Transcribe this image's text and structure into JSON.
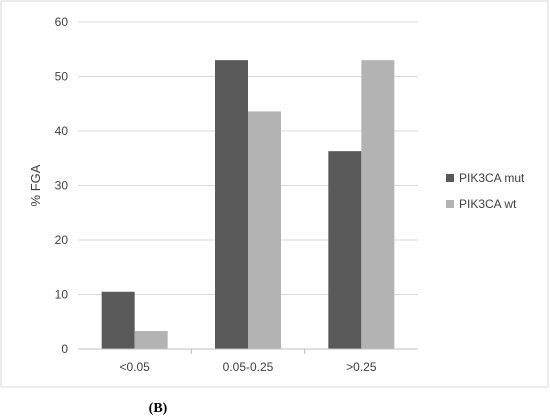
{
  "chart_data": {
    "type": "bar",
    "title": "",
    "xlabel": "",
    "ylabel": "% FGA",
    "ylim": [
      0,
      60
    ],
    "yticks": [
      0,
      10,
      20,
      30,
      40,
      50,
      60
    ],
    "grid": true,
    "legend_position": "right",
    "categories": [
      "<0.05",
      "0.05-0.25",
      ">0.25"
    ],
    "series": [
      {
        "name": "PIK3CA mut",
        "color": "#595959",
        "values": [
          10.5,
          53.0,
          36.3
        ]
      },
      {
        "name": "PIK3CA wt",
        "color": "#b3b3b3",
        "values": [
          3.3,
          43.6,
          53.0
        ]
      }
    ]
  },
  "caption": "(B)"
}
